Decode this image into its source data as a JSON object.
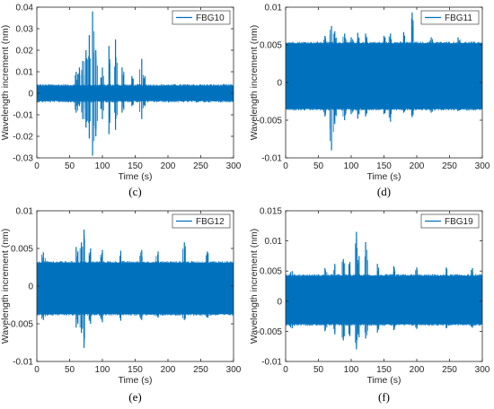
{
  "chart_data": [
    {
      "type": "line",
      "panel_label": "(c)",
      "series": [
        {
          "name": "FBG10",
          "color": "#0072BD"
        }
      ],
      "xlabel": "Time (s)",
      "ylabel": "Wavelength increment (nm)",
      "xlim": [
        0,
        300
      ],
      "ylim": [
        -0.03,
        0.04
      ],
      "xticks": [
        "0",
        "50",
        "100",
        "150",
        "200",
        "250",
        "300"
      ],
      "yticks": [
        "-0.03",
        "-0.02",
        "-0.01",
        "0",
        "0.01",
        "0.02",
        "0.03",
        "0.04"
      ],
      "legend_position": "top-right",
      "grid": false,
      "baseline_band": [
        -0.0035,
        0.0035
      ],
      "spikes": [
        {
          "x": 60,
          "lo": -0.009,
          "hi": 0.01
        },
        {
          "x": 65,
          "lo": -0.006,
          "hi": 0.012
        },
        {
          "x": 70,
          "lo": -0.012,
          "hi": 0.015
        },
        {
          "x": 75,
          "lo": -0.016,
          "hi": 0.02
        },
        {
          "x": 80,
          "lo": -0.021,
          "hi": 0.027
        },
        {
          "x": 85,
          "lo": -0.029,
          "hi": 0.038
        },
        {
          "x": 90,
          "lo": -0.02,
          "hi": 0.02
        },
        {
          "x": 100,
          "lo": -0.012,
          "hi": 0.012
        },
        {
          "x": 110,
          "lo": -0.019,
          "hi": 0.022
        },
        {
          "x": 120,
          "lo": -0.017,
          "hi": 0.025
        },
        {
          "x": 130,
          "lo": -0.009,
          "hi": 0.012
        },
        {
          "x": 145,
          "lo": -0.006,
          "hi": 0.008
        },
        {
          "x": 160,
          "lo": -0.012,
          "hi": 0.016
        },
        {
          "x": 165,
          "lo": -0.006,
          "hi": 0.008
        }
      ]
    },
    {
      "type": "line",
      "panel_label": "(d)",
      "series": [
        {
          "name": "FBG11",
          "color": "#0072BD"
        }
      ],
      "xlabel": "Time (s)",
      "ylabel": "Wavelength increment (nm)",
      "xlim": [
        0,
        300
      ],
      "ylim": [
        -0.01,
        0.01
      ],
      "xticks": [
        "0",
        "50",
        "100",
        "150",
        "200",
        "250",
        "300"
      ],
      "yticks": [
        "-0.01",
        "-0.005",
        "0",
        "0.005",
        "0.01"
      ],
      "legend_position": "top-right",
      "grid": false,
      "baseline_band": [
        -0.0035,
        0.0052
      ],
      "spikes": [
        {
          "x": 60,
          "lo": -0.0045,
          "hi": 0.0062
        },
        {
          "x": 70,
          "lo": -0.009,
          "hi": 0.0075
        },
        {
          "x": 75,
          "lo": -0.0055,
          "hi": 0.0068
        },
        {
          "x": 90,
          "lo": -0.005,
          "hi": 0.0065
        },
        {
          "x": 100,
          "lo": -0.0042,
          "hi": 0.006
        },
        {
          "x": 110,
          "lo": -0.0048,
          "hi": 0.0066
        },
        {
          "x": 122,
          "lo": -0.0045,
          "hi": 0.0065
        },
        {
          "x": 150,
          "lo": -0.0042,
          "hi": 0.0062
        },
        {
          "x": 160,
          "lo": -0.0052,
          "hi": 0.0065
        },
        {
          "x": 180,
          "lo": -0.004,
          "hi": 0.0067
        },
        {
          "x": 193,
          "lo": -0.0046,
          "hi": 0.0093
        },
        {
          "x": 222,
          "lo": -0.004,
          "hi": 0.006
        },
        {
          "x": 263,
          "lo": -0.0038,
          "hi": 0.006
        }
      ]
    },
    {
      "type": "line",
      "panel_label": "(e)",
      "series": [
        {
          "name": "FBG12",
          "color": "#0072BD"
        }
      ],
      "xlabel": "Time (s)",
      "ylabel": "Wavelength increment (nm)",
      "xlim": [
        0,
        300
      ],
      "ylim": [
        -0.01,
        0.01
      ],
      "xticks": [
        "0",
        "50",
        "100",
        "150",
        "200",
        "250",
        "300"
      ],
      "yticks": [
        "-0.01",
        "-0.005",
        "0",
        "0.005",
        "0.01"
      ],
      "legend_position": "top-right",
      "grid": false,
      "baseline_band": [
        -0.0037,
        0.0031
      ],
      "spikes": [
        {
          "x": 10,
          "lo": -0.0045,
          "hi": 0.0045
        },
        {
          "x": 60,
          "lo": -0.0055,
          "hi": 0.0052
        },
        {
          "x": 68,
          "lo": -0.0062,
          "hi": 0.0058
        },
        {
          "x": 72,
          "lo": -0.0082,
          "hi": 0.0075
        },
        {
          "x": 82,
          "lo": -0.005,
          "hi": 0.005
        },
        {
          "x": 100,
          "lo": -0.0048,
          "hi": 0.0048
        },
        {
          "x": 128,
          "lo": -0.0046,
          "hi": 0.0047
        },
        {
          "x": 160,
          "lo": -0.0045,
          "hi": 0.0048
        },
        {
          "x": 185,
          "lo": -0.0042,
          "hi": 0.0046
        },
        {
          "x": 225,
          "lo": -0.0045,
          "hi": 0.0058
        },
        {
          "x": 260,
          "lo": -0.0042,
          "hi": 0.0046
        }
      ]
    },
    {
      "type": "line",
      "panel_label": "(f)",
      "series": [
        {
          "name": "FBG19",
          "color": "#0072BD"
        }
      ],
      "xlabel": "Time (s)",
      "ylabel": "Wavelength increment (nm)",
      "xlim": [
        0,
        300
      ],
      "ylim": [
        -0.01,
        0.015
      ],
      "xticks": [
        "0",
        "50",
        "100",
        "150",
        "200",
        "250",
        "300"
      ],
      "yticks": [
        "-0.01",
        "-0.005",
        "0",
        "0.005",
        "0.01",
        "0.015"
      ],
      "legend_position": "top-right",
      "grid": false,
      "baseline_band": [
        -0.0038,
        0.0042
      ],
      "spikes": [
        {
          "x": 10,
          "lo": -0.0045,
          "hi": 0.005
        },
        {
          "x": 60,
          "lo": -0.005,
          "hi": 0.0055
        },
        {
          "x": 75,
          "lo": -0.0055,
          "hi": 0.0062
        },
        {
          "x": 88,
          "lo": -0.0065,
          "hi": 0.007
        },
        {
          "x": 98,
          "lo": -0.0058,
          "hi": 0.0065
        },
        {
          "x": 108,
          "lo": -0.008,
          "hi": 0.0115
        },
        {
          "x": 112,
          "lo": -0.006,
          "hi": 0.0075
        },
        {
          "x": 122,
          "lo": -0.0062,
          "hi": 0.0098
        },
        {
          "x": 140,
          "lo": -0.0052,
          "hi": 0.0062
        },
        {
          "x": 165,
          "lo": -0.0048,
          "hi": 0.0058
        },
        {
          "x": 200,
          "lo": -0.0046,
          "hi": 0.0056
        },
        {
          "x": 245,
          "lo": -0.0045,
          "hi": 0.0056
        },
        {
          "x": 285,
          "lo": -0.0044,
          "hi": 0.0055
        }
      ]
    }
  ]
}
